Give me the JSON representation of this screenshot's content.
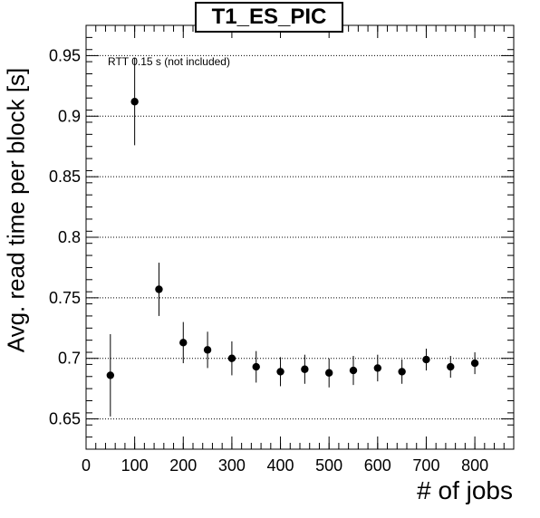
{
  "chart_data": {
    "type": "scatter",
    "title": "T1_ES_PIC",
    "xlabel": "# of jobs",
    "ylabel": "Avg. read time per block [s]",
    "annotation": "RTT 0.15 s (not included)",
    "xlim": [
      0,
      880
    ],
    "ylim": [
      0.625,
      0.975
    ],
    "xticks": [
      0,
      100,
      200,
      300,
      400,
      500,
      600,
      700,
      800
    ],
    "yticks": [
      0.65,
      0.7,
      0.75,
      0.8,
      0.85,
      0.9,
      0.95
    ],
    "ytick_labels": [
      "0.65",
      "0.7",
      "0.75",
      "0.8",
      "0.85",
      "0.9",
      "0.95"
    ],
    "grid": "y-dotted",
    "series": [
      {
        "marker": "circle",
        "color": "#000000",
        "points": [
          {
            "x": 50,
            "y": 0.686,
            "err": 0.034
          },
          {
            "x": 100,
            "y": 0.912,
            "err": 0.036
          },
          {
            "x": 150,
            "y": 0.757,
            "err": 0.022
          },
          {
            "x": 200,
            "y": 0.713,
            "err": 0.017
          },
          {
            "x": 250,
            "y": 0.707,
            "err": 0.015
          },
          {
            "x": 300,
            "y": 0.7,
            "err": 0.014
          },
          {
            "x": 350,
            "y": 0.693,
            "err": 0.013
          },
          {
            "x": 400,
            "y": 0.689,
            "err": 0.012
          },
          {
            "x": 450,
            "y": 0.691,
            "err": 0.012
          },
          {
            "x": 500,
            "y": 0.688,
            "err": 0.012
          },
          {
            "x": 550,
            "y": 0.69,
            "err": 0.012
          },
          {
            "x": 600,
            "y": 0.692,
            "err": 0.011
          },
          {
            "x": 650,
            "y": 0.689,
            "err": 0.01
          },
          {
            "x": 700,
            "y": 0.699,
            "err": 0.009
          },
          {
            "x": 750,
            "y": 0.693,
            "err": 0.009
          },
          {
            "x": 800,
            "y": 0.696,
            "err": 0.009
          }
        ]
      }
    ]
  }
}
